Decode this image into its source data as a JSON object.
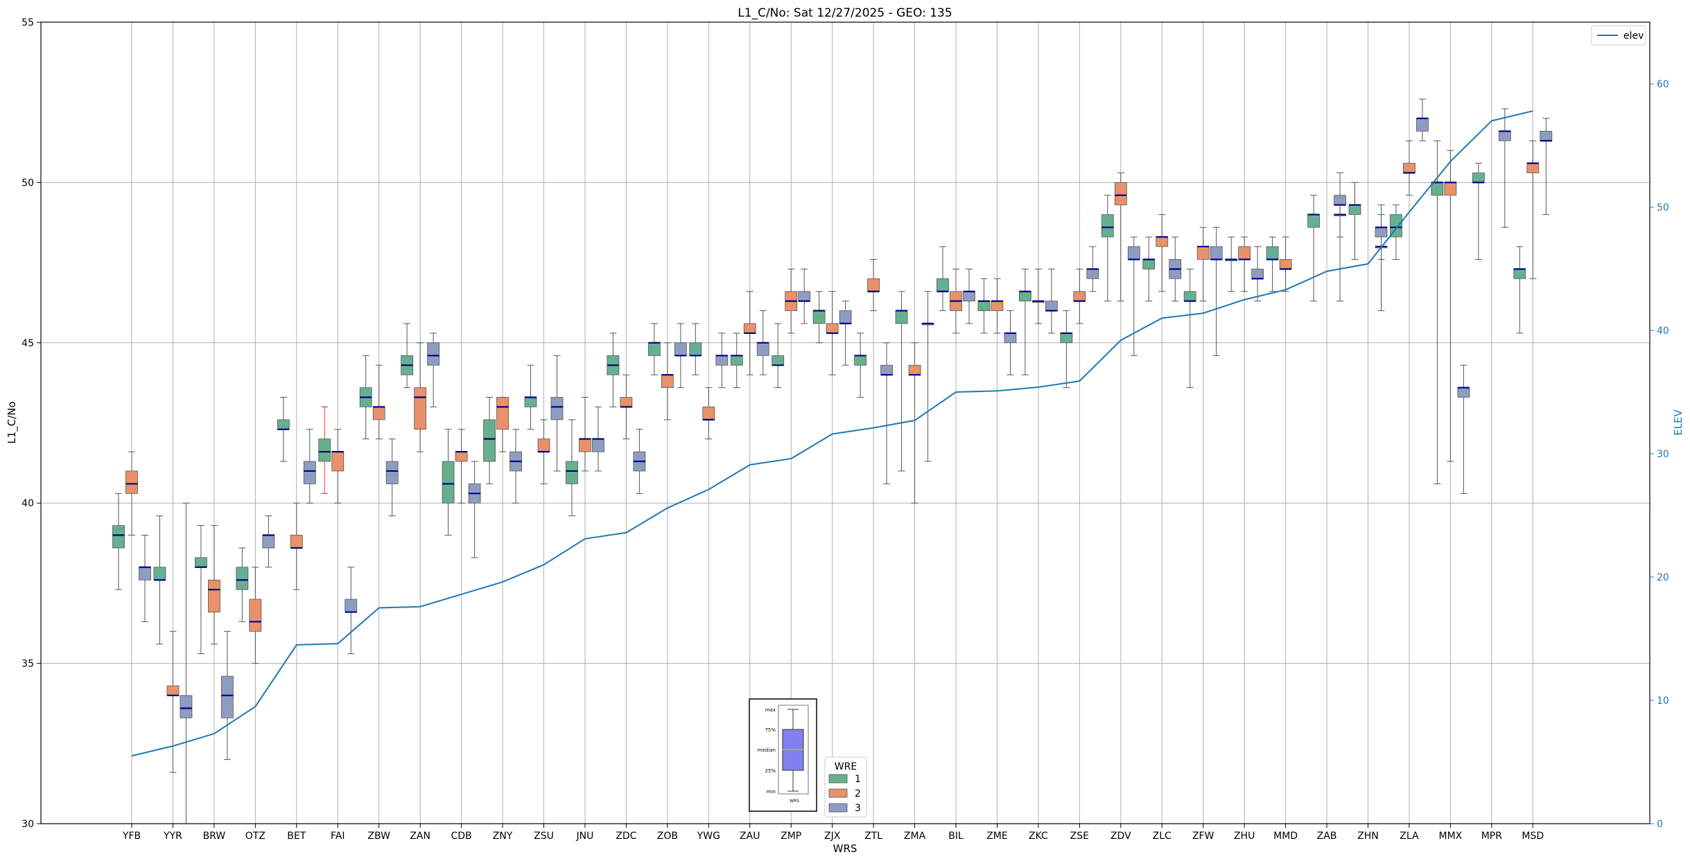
{
  "chart_data": {
    "type": "box",
    "title": "L1_C/No: Sat 12/27/2025 - GEO: 135",
    "xlabel": "WRS",
    "ylabel": "L1_C/No",
    "y2label": "ELEV",
    "ylim": [
      30,
      55
    ],
    "y2lim": [
      0,
      65
    ],
    "yticks": [
      30,
      35,
      40,
      45,
      50,
      55
    ],
    "y2ticks": [
      0,
      10,
      20,
      30,
      40,
      50,
      60
    ],
    "grid": true,
    "categories": [
      "YFB",
      "YYR",
      "BRW",
      "OTZ",
      "BET",
      "FAI",
      "ZBW",
      "ZAN",
      "CDB",
      "ZNY",
      "ZSU",
      "JNU",
      "ZDC",
      "ZOB",
      "YWG",
      "ZAU",
      "ZMP",
      "ZJX",
      "ZTL",
      "ZMA",
      "BIL",
      "ZME",
      "ZKC",
      "ZSE",
      "ZDV",
      "ZLC",
      "ZFW",
      "ZHU",
      "MMD",
      "ZAB",
      "ZHN",
      "ZLA",
      "MMX",
      "MPR",
      "MSD"
    ],
    "wre_colors": {
      "1": "#66b08f",
      "2": "#e8916a",
      "3": "#8f9cc1"
    },
    "legend": {
      "title": "WRE",
      "entries": [
        "1",
        "2",
        "3"
      ],
      "placement": "bottom-center"
    },
    "elev_legend": {
      "label": "elev",
      "placement": "top-right"
    },
    "boxes": [
      {
        "cat": "YFB",
        "wre": 1,
        "min": 37.3,
        "q1": 38.6,
        "med": 39.0,
        "q3": 39.3,
        "max": 40.3
      },
      {
        "cat": "YFB",
        "wre": 2,
        "min": 39.0,
        "q1": 40.3,
        "med": 40.6,
        "q3": 41.0,
        "max": 41.6
      },
      {
        "cat": "YFB",
        "wre": 3,
        "min": 36.3,
        "q1": 37.6,
        "med": 38.0,
        "q3": 38.0,
        "max": 39.0
      },
      {
        "cat": "YYR",
        "wre": 1,
        "min": 35.6,
        "q1": 37.6,
        "med": 37.6,
        "q3": 38.0,
        "max": 39.6
      },
      {
        "cat": "YYR",
        "wre": 2,
        "min": 31.6,
        "q1": 34.0,
        "med": 34.0,
        "q3": 34.3,
        "max": 36.0
      },
      {
        "cat": "YYR",
        "wre": 3,
        "min": 30.0,
        "q1": 33.3,
        "med": 33.6,
        "q3": 34.0,
        "max": 40.0
      },
      {
        "cat": "BRW",
        "wre": 1,
        "min": 35.3,
        "q1": 38.0,
        "med": 38.0,
        "q3": 38.3,
        "max": 39.3
      },
      {
        "cat": "BRW",
        "wre": 2,
        "min": 35.6,
        "q1": 36.6,
        "med": 37.3,
        "q3": 37.6,
        "max": 39.3
      },
      {
        "cat": "BRW",
        "wre": 3,
        "min": 32.0,
        "q1": 33.3,
        "med": 34.0,
        "q3": 34.6,
        "max": 36.0
      },
      {
        "cat": "OTZ",
        "wre": 1,
        "min": 36.3,
        "q1": 37.3,
        "med": 37.6,
        "q3": 38.0,
        "max": 38.6
      },
      {
        "cat": "OTZ",
        "wre": 2,
        "min": 35.0,
        "q1": 36.0,
        "med": 36.3,
        "q3": 37.0,
        "max": 38.0
      },
      {
        "cat": "OTZ",
        "wre": 3,
        "min": 38.0,
        "q1": 38.6,
        "med": 39.0,
        "q3": 39.0,
        "max": 39.6
      },
      {
        "cat": "BET",
        "wre": 1,
        "min": 41.3,
        "q1": 42.3,
        "med": 42.3,
        "q3": 42.6,
        "max": 43.3
      },
      {
        "cat": "BET",
        "wre": 2,
        "min": 37.3,
        "q1": 38.6,
        "med": 38.6,
        "q3": 39.0,
        "max": 40.0
      },
      {
        "cat": "BET",
        "wre": 3,
        "min": 40.0,
        "q1": 40.6,
        "med": 41.0,
        "q3": 41.3,
        "max": 42.3
      },
      {
        "cat": "FAI",
        "wre": 1,
        "min": 40.3,
        "q1": 41.3,
        "med": 41.6,
        "q3": 42.0,
        "max": 43.0,
        "highlight": true
      },
      {
        "cat": "FAI",
        "wre": 2,
        "min": 40.0,
        "q1": 41.0,
        "med": 41.6,
        "q3": 41.6,
        "max": 42.3
      },
      {
        "cat": "FAI",
        "wre": 3,
        "min": 35.3,
        "q1": 36.6,
        "med": 36.6,
        "q3": 37.0,
        "max": 38.0
      },
      {
        "cat": "ZBW",
        "wre": 1,
        "min": 42.0,
        "q1": 43.0,
        "med": 43.3,
        "q3": 43.6,
        "max": 44.6
      },
      {
        "cat": "ZBW",
        "wre": 2,
        "min": 42.0,
        "q1": 42.6,
        "med": 43.0,
        "q3": 43.0,
        "max": 44.3
      },
      {
        "cat": "ZBW",
        "wre": 3,
        "min": 39.6,
        "q1": 40.6,
        "med": 41.0,
        "q3": 41.3,
        "max": 42.0
      },
      {
        "cat": "ZAN",
        "wre": 1,
        "min": 43.6,
        "q1": 44.0,
        "med": 44.3,
        "q3": 44.6,
        "max": 45.6
      },
      {
        "cat": "ZAN",
        "wre": 2,
        "min": 41.6,
        "q1": 42.3,
        "med": 43.3,
        "q3": 43.6,
        "max": 45.0
      },
      {
        "cat": "ZAN",
        "wre": 3,
        "min": 43.0,
        "q1": 44.3,
        "med": 44.6,
        "q3": 45.0,
        "max": 45.3
      },
      {
        "cat": "CDB",
        "wre": 1,
        "min": 39.0,
        "q1": 40.0,
        "med": 40.6,
        "q3": 41.3,
        "max": 42.3
      },
      {
        "cat": "CDB",
        "wre": 2,
        "min": 40.0,
        "q1": 41.3,
        "med": 41.6,
        "q3": 41.6,
        "max": 42.3
      },
      {
        "cat": "CDB",
        "wre": 3,
        "min": 38.3,
        "q1": 40.0,
        "med": 40.3,
        "q3": 40.6,
        "max": 41.3
      },
      {
        "cat": "ZNY",
        "wre": 1,
        "min": 40.6,
        "q1": 41.3,
        "med": 42.0,
        "q3": 42.6,
        "max": 43.3
      },
      {
        "cat": "ZNY",
        "wre": 2,
        "min": 41.6,
        "q1": 42.3,
        "med": 43.0,
        "q3": 43.3,
        "max": 43.3
      },
      {
        "cat": "ZNY",
        "wre": 3,
        "min": 40.0,
        "q1": 41.0,
        "med": 41.3,
        "q3": 41.6,
        "max": 42.3
      },
      {
        "cat": "ZSU",
        "wre": 1,
        "min": 42.3,
        "q1": 43.0,
        "med": 43.3,
        "q3": 43.3,
        "max": 44.3
      },
      {
        "cat": "ZSU",
        "wre": 2,
        "min": 40.6,
        "q1": 41.6,
        "med": 41.6,
        "q3": 42.0,
        "max": 42.6
      },
      {
        "cat": "ZSU",
        "wre": 3,
        "min": 41.0,
        "q1": 42.6,
        "med": 43.0,
        "q3": 43.3,
        "max": 44.6
      },
      {
        "cat": "JNU",
        "wre": 1,
        "min": 39.6,
        "q1": 40.6,
        "med": 41.0,
        "q3": 41.3,
        "max": 42.6
      },
      {
        "cat": "JNU",
        "wre": 2,
        "min": 41.0,
        "q1": 41.6,
        "med": 42.0,
        "q3": 42.0,
        "max": 43.3
      },
      {
        "cat": "JNU",
        "wre": 3,
        "min": 41.0,
        "q1": 41.6,
        "med": 42.0,
        "q3": 42.0,
        "max": 43.0
      },
      {
        "cat": "ZDC",
        "wre": 1,
        "min": 43.0,
        "q1": 44.0,
        "med": 44.3,
        "q3": 44.6,
        "max": 45.3
      },
      {
        "cat": "ZDC",
        "wre": 2,
        "min": 42.0,
        "q1": 43.0,
        "med": 43.0,
        "q3": 43.3,
        "max": 44.0
      },
      {
        "cat": "ZDC",
        "wre": 3,
        "min": 40.3,
        "q1": 41.0,
        "med": 41.3,
        "q3": 41.6,
        "max": 42.3
      },
      {
        "cat": "ZOB",
        "wre": 1,
        "min": 44.0,
        "q1": 44.6,
        "med": 45.0,
        "q3": 45.0,
        "max": 45.6
      },
      {
        "cat": "ZOB",
        "wre": 2,
        "min": 42.6,
        "q1": 43.6,
        "med": 44.0,
        "q3": 44.0,
        "max": 45.0
      },
      {
        "cat": "ZOB",
        "wre": 3,
        "min": 43.6,
        "q1": 44.6,
        "med": 44.6,
        "q3": 45.0,
        "max": 45.6
      },
      {
        "cat": "YWG",
        "wre": 1,
        "min": 44.0,
        "q1": 44.6,
        "med": 44.6,
        "q3": 45.0,
        "max": 45.6
      },
      {
        "cat": "YWG",
        "wre": 2,
        "min": 42.0,
        "q1": 42.6,
        "med": 42.6,
        "q3": 43.0,
        "max": 43.6
      },
      {
        "cat": "YWG",
        "wre": 3,
        "min": 43.6,
        "q1": 44.3,
        "med": 44.6,
        "q3": 44.6,
        "max": 45.3
      },
      {
        "cat": "ZAU",
        "wre": 1,
        "min": 43.6,
        "q1": 44.3,
        "med": 44.6,
        "q3": 44.6,
        "max": 45.3
      },
      {
        "cat": "ZAU",
        "wre": 2,
        "min": 44.0,
        "q1": 45.3,
        "med": 45.3,
        "q3": 45.6,
        "max": 46.6
      },
      {
        "cat": "ZAU",
        "wre": 3,
        "min": 44.0,
        "q1": 44.6,
        "med": 45.0,
        "q3": 45.0,
        "max": 46.0
      },
      {
        "cat": "ZMP",
        "wre": 1,
        "min": 43.6,
        "q1": 44.3,
        "med": 44.3,
        "q3": 44.6,
        "max": 45.6
      },
      {
        "cat": "ZMP",
        "wre": 2,
        "min": 45.3,
        "q1": 46.0,
        "med": 46.3,
        "q3": 46.6,
        "max": 47.3
      },
      {
        "cat": "ZMP",
        "wre": 3,
        "min": 45.6,
        "q1": 46.3,
        "med": 46.3,
        "q3": 46.6,
        "max": 47.3
      },
      {
        "cat": "ZJX",
        "wre": 1,
        "min": 45.0,
        "q1": 45.6,
        "med": 46.0,
        "q3": 46.0,
        "max": 46.6
      },
      {
        "cat": "ZJX",
        "wre": 2,
        "min": 44.0,
        "q1": 45.3,
        "med": 45.3,
        "q3": 45.6,
        "max": 46.6
      },
      {
        "cat": "ZJX",
        "wre": 3,
        "min": 44.3,
        "q1": 45.6,
        "med": 45.6,
        "q3": 46.0,
        "max": 46.3
      },
      {
        "cat": "ZTL",
        "wre": 1,
        "min": 43.3,
        "q1": 44.3,
        "med": 44.6,
        "q3": 44.6,
        "max": 45.3
      },
      {
        "cat": "ZTL",
        "wre": 2,
        "min": 46.0,
        "q1": 46.6,
        "med": 46.6,
        "q3": 47.0,
        "max": 47.6
      },
      {
        "cat": "ZTL",
        "wre": 3,
        "min": 40.6,
        "q1": 44.0,
        "med": 44.0,
        "q3": 44.3,
        "max": 45.0
      },
      {
        "cat": "ZMA",
        "wre": 1,
        "min": 41.0,
        "q1": 45.6,
        "med": 46.0,
        "q3": 46.0,
        "max": 46.6
      },
      {
        "cat": "ZMA",
        "wre": 2,
        "min": 40.0,
        "q1": 44.0,
        "med": 44.0,
        "q3": 44.3,
        "max": 45.0
      },
      {
        "cat": "ZMA",
        "wre": 3,
        "min": 41.3,
        "q1": 45.6,
        "med": 45.6,
        "q3": 45.6,
        "max": 46.6
      },
      {
        "cat": "BIL",
        "wre": 1,
        "min": 46.0,
        "q1": 46.6,
        "med": 46.6,
        "q3": 47.0,
        "max": 48.0
      },
      {
        "cat": "BIL",
        "wre": 2,
        "min": 45.3,
        "q1": 46.0,
        "med": 46.3,
        "q3": 46.6,
        "max": 47.3
      },
      {
        "cat": "BIL",
        "wre": 3,
        "min": 45.6,
        "q1": 46.3,
        "med": 46.6,
        "q3": 46.6,
        "max": 47.3
      },
      {
        "cat": "ZME",
        "wre": 1,
        "min": 45.3,
        "q1": 46.0,
        "med": 46.3,
        "q3": 46.3,
        "max": 47.0
      },
      {
        "cat": "ZME",
        "wre": 2,
        "min": 45.3,
        "q1": 46.0,
        "med": 46.3,
        "q3": 46.3,
        "max": 47.0
      },
      {
        "cat": "ZME",
        "wre": 3,
        "min": 44.0,
        "q1": 45.0,
        "med": 45.3,
        "q3": 45.3,
        "max": 46.0
      },
      {
        "cat": "ZKC",
        "wre": 1,
        "min": 44.0,
        "q1": 46.3,
        "med": 46.6,
        "q3": 46.6,
        "max": 47.3
      },
      {
        "cat": "ZKC",
        "wre": 2,
        "min": 45.6,
        "q1": 46.3,
        "med": 46.3,
        "q3": 46.3,
        "max": 47.3
      },
      {
        "cat": "ZKC",
        "wre": 3,
        "min": 45.3,
        "q1": 46.0,
        "med": 46.0,
        "q3": 46.3,
        "max": 47.3
      },
      {
        "cat": "ZSE",
        "wre": 1,
        "min": 43.6,
        "q1": 45.0,
        "med": 45.3,
        "q3": 45.3,
        "max": 46.0
      },
      {
        "cat": "ZSE",
        "wre": 2,
        "min": 45.6,
        "q1": 46.3,
        "med": 46.3,
        "q3": 46.6,
        "max": 47.3
      },
      {
        "cat": "ZSE",
        "wre": 3,
        "min": 46.6,
        "q1": 47.0,
        "med": 47.3,
        "q3": 47.3,
        "max": 48.0
      },
      {
        "cat": "ZDV",
        "wre": 1,
        "min": 46.3,
        "q1": 48.3,
        "med": 48.6,
        "q3": 49.0,
        "max": 49.6
      },
      {
        "cat": "ZDV",
        "wre": 2,
        "min": 46.3,
        "q1": 49.3,
        "med": 49.6,
        "q3": 50.0,
        "max": 50.3
      },
      {
        "cat": "ZDV",
        "wre": 3,
        "min": 44.6,
        "q1": 47.6,
        "med": 47.6,
        "q3": 48.0,
        "max": 48.3
      },
      {
        "cat": "ZLC",
        "wre": 1,
        "min": 46.3,
        "q1": 47.3,
        "med": 47.6,
        "q3": 47.6,
        "max": 48.3
      },
      {
        "cat": "ZLC",
        "wre": 2,
        "min": 46.6,
        "q1": 48.0,
        "med": 48.3,
        "q3": 48.3,
        "max": 49.0
      },
      {
        "cat": "ZLC",
        "wre": 3,
        "min": 46.3,
        "q1": 47.0,
        "med": 47.3,
        "q3": 47.6,
        "max": 48.3
      },
      {
        "cat": "ZFW",
        "wre": 1,
        "min": 43.6,
        "q1": 46.3,
        "med": 46.3,
        "q3": 46.6,
        "max": 47.3
      },
      {
        "cat": "ZFW",
        "wre": 2,
        "min": 46.3,
        "q1": 47.6,
        "med": 48.0,
        "q3": 48.0,
        "max": 48.6
      },
      {
        "cat": "ZFW",
        "wre": 3,
        "min": 44.6,
        "q1": 47.6,
        "med": 47.6,
        "q3": 48.0,
        "max": 48.6
      },
      {
        "cat": "ZHU",
        "wre": 1,
        "min": 46.6,
        "q1": 47.6,
        "med": 47.6,
        "q3": 47.6,
        "max": 48.3
      },
      {
        "cat": "ZHU",
        "wre": 2,
        "min": 46.6,
        "q1": 47.6,
        "med": 47.6,
        "q3": 48.0,
        "max": 48.3
      },
      {
        "cat": "ZHU",
        "wre": 3,
        "min": 46.3,
        "q1": 47.0,
        "med": 47.0,
        "q3": 47.3,
        "max": 48.0
      },
      {
        "cat": "MMD",
        "wre": 1,
        "min": 46.6,
        "q1": 47.6,
        "med": 47.6,
        "q3": 48.0,
        "max": 48.3
      },
      {
        "cat": "MMD",
        "wre": 2,
        "min": 46.6,
        "q1": 47.3,
        "med": 47.3,
        "q3": 47.6,
        "max": 48.3
      },
      {
        "cat": "ZAB",
        "wre": 1,
        "min": 46.3,
        "q1": 48.6,
        "med": 49.0,
        "q3": 49.0,
        "max": 49.6
      },
      {
        "cat": "ZAB",
        "wre": 3,
        "min": 46.3,
        "q1": 49.0,
        "med": 49.0,
        "q3": 49.0,
        "max": 49.6
      },
      {
        "cat": "ZAB",
        "wre": 3,
        "min": 48.3,
        "q1": 49.3,
        "med": 49.3,
        "q3": 49.6,
        "max": 50.3
      },
      {
        "cat": "ZHN",
        "wre": 1,
        "min": 47.6,
        "q1": 49.0,
        "med": 49.3,
        "q3": 49.3,
        "max": 50.0
      },
      {
        "cat": "ZHN",
        "wre": 3,
        "min": 46.0,
        "q1": 48.0,
        "med": 48.0,
        "q3": 48.0,
        "max": 49.0
      },
      {
        "cat": "ZHN",
        "wre": 3,
        "min": 47.6,
        "q1": 48.3,
        "med": 48.6,
        "q3": 48.6,
        "max": 49.3
      },
      {
        "cat": "ZLA",
        "wre": 1,
        "min": 47.6,
        "q1": 48.3,
        "med": 48.6,
        "q3": 49.0,
        "max": 49.3
      },
      {
        "cat": "ZLA",
        "wre": 2,
        "min": 49.6,
        "q1": 50.3,
        "med": 50.3,
        "q3": 50.6,
        "max": 51.3
      },
      {
        "cat": "ZLA",
        "wre": 3,
        "min": 51.3,
        "q1": 51.6,
        "med": 52.0,
        "q3": 52.0,
        "max": 52.6
      },
      {
        "cat": "MMX",
        "wre": 1,
        "min": 40.6,
        "q1": 49.6,
        "med": 50.0,
        "q3": 50.0,
        "max": 51.3
      },
      {
        "cat": "MMX",
        "wre": 2,
        "min": 41.3,
        "q1": 49.6,
        "med": 50.0,
        "q3": 50.0,
        "max": 51.0
      },
      {
        "cat": "MMX",
        "wre": 3,
        "min": 40.3,
        "q1": 43.3,
        "med": 43.6,
        "q3": 43.6,
        "max": 44.3
      },
      {
        "cat": "MPR",
        "wre": 1,
        "min": 47.6,
        "q1": 50.0,
        "med": 50.0,
        "q3": 50.3,
        "max": 50.6
      },
      {
        "cat": "MPR",
        "wre": 3,
        "min": 48.6,
        "q1": 51.3,
        "med": 51.6,
        "q3": 51.6,
        "max": 52.3
      },
      {
        "cat": "MSD",
        "wre": 1,
        "min": 45.3,
        "q1": 47.0,
        "med": 47.3,
        "q3": 47.3,
        "max": 48.0
      },
      {
        "cat": "MSD",
        "wre": 2,
        "min": 47.0,
        "q1": 50.3,
        "med": 50.6,
        "q3": 50.6,
        "max": 51.3
      },
      {
        "cat": "MSD",
        "wre": 3,
        "min": 49.0,
        "q1": 51.3,
        "med": 51.3,
        "q3": 51.6,
        "max": 52.0
      }
    ],
    "elev": {
      "name": "elev",
      "color": "#1f77b4",
      "values": [
        5.5,
        6.3,
        7.3,
        9.5,
        14.5,
        14.6,
        17.5,
        17.6,
        18.6,
        19.6,
        21.0,
        23.1,
        23.6,
        25.6,
        27.1,
        29.1,
        29.6,
        31.6,
        32.1,
        32.7,
        35.0,
        35.1,
        35.4,
        35.9,
        39.2,
        41.0,
        41.4,
        42.5,
        43.3,
        44.8,
        45.4,
        49.6,
        53.7,
        57.0,
        57.8
      ]
    },
    "inset": {
      "labels": [
        "max",
        "75%",
        "median",
        "25%",
        "min"
      ],
      "xlabel": "WRS",
      "fill": "#8080f0"
    }
  }
}
